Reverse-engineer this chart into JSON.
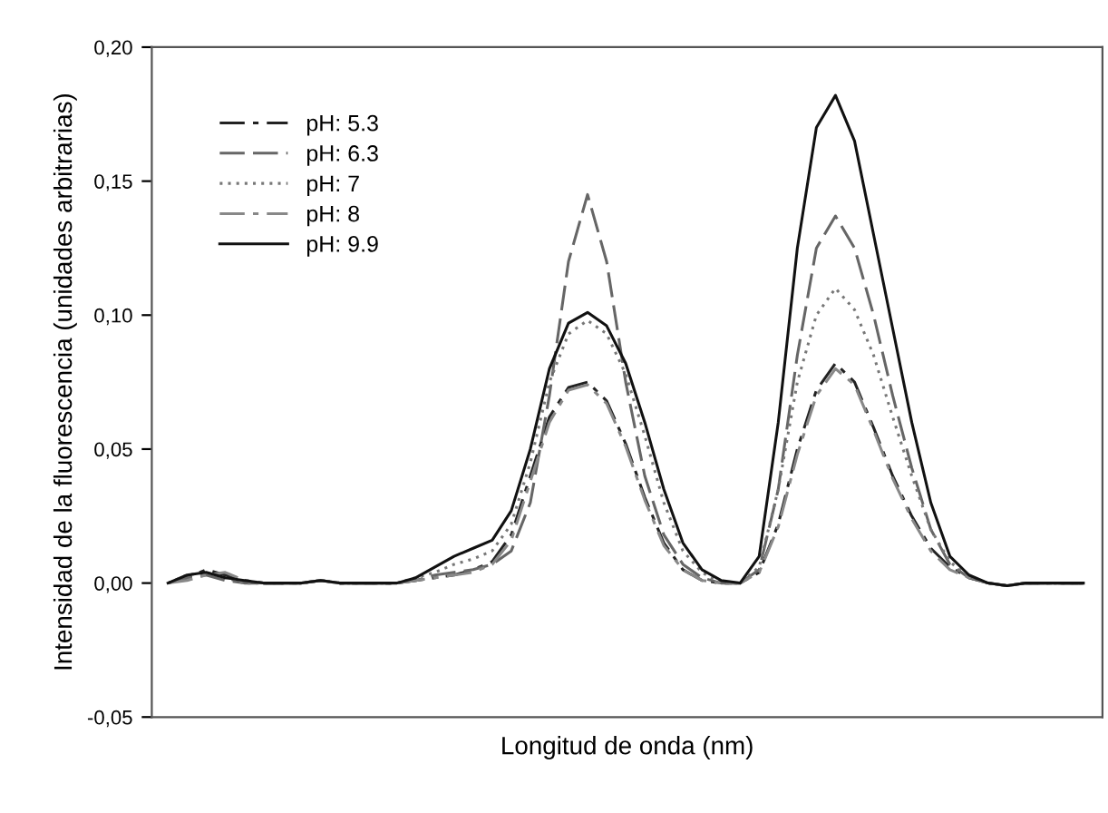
{
  "chart_data": {
    "type": "line",
    "xlabel": "Longitud de onda (nm)",
    "ylabel": "Intensidad de la fluorescencia (unidades arbitrarias)",
    "categories": [
      null,
      null,
      null,
      null,
      null,
      null,
      null,
      null,
      null,
      null,
      null,
      null,
      null,
      null,
      null,
      null,
      null,
      null,
      null,
      null,
      null,
      null,
      null,
      null,
      null,
      null,
      null,
      null,
      null,
      null,
      null,
      null,
      null,
      null,
      null,
      null,
      null,
      null,
      null,
      null,
      null,
      null,
      null,
      null,
      null,
      null,
      null,
      null,
      null
    ],
    "ylim": [
      -0.05,
      0.2
    ],
    "yticks": [
      {
        "value": -0.05,
        "label": "-0,05"
      },
      {
        "value": 0,
        "label": "0,00"
      },
      {
        "value": 0.05,
        "label": "0,05"
      },
      {
        "value": 0.1,
        "label": "0,10"
      },
      {
        "value": 0.15,
        "label": "0,15"
      },
      {
        "value": 0.2,
        "label": "0,20"
      }
    ],
    "grid": false,
    "legend": "top left",
    "marker": "none",
    "series": [
      {
        "name": "pH: 5.3",
        "color": "#222222",
        "line_style": "dashdot",
        "values": [
          0.0,
          0.002,
          0.005,
          0.003,
          0.001,
          0.0,
          0.0,
          0.0,
          0.001,
          0.0,
          0.0,
          0.0,
          0.0,
          0.001,
          0.002,
          0.003,
          0.005,
          0.008,
          0.018,
          0.04,
          0.062,
          0.073,
          0.075,
          0.068,
          0.052,
          0.032,
          0.015,
          0.005,
          0.001,
          0.0,
          0.0,
          0.004,
          0.022,
          0.05,
          0.072,
          0.082,
          0.075,
          0.058,
          0.04,
          0.025,
          0.013,
          0.006,
          0.002,
          0.0,
          -0.001,
          0.0,
          0.0,
          0.0,
          0.0
        ]
      },
      {
        "name": "pH: 6.3",
        "color": "#666666",
        "line_style": "dashed",
        "values": [
          0.0,
          0.002,
          0.003,
          0.001,
          0.0,
          0.0,
          0.0,
          0.0,
          0.001,
          0.0,
          0.0,
          0.0,
          0.0,
          0.001,
          0.003,
          0.004,
          0.005,
          0.007,
          0.012,
          0.03,
          0.07,
          0.12,
          0.145,
          0.12,
          0.075,
          0.04,
          0.018,
          0.007,
          0.002,
          0.0,
          0.0,
          0.005,
          0.035,
          0.085,
          0.125,
          0.137,
          0.125,
          0.1,
          0.07,
          0.043,
          0.02,
          0.007,
          0.002,
          0.0,
          -0.001,
          0.0,
          0.0,
          0.0,
          0.0
        ]
      },
      {
        "name": "pH: 7",
        "color": "#777777",
        "line_style": "dotted",
        "values": [
          0.0,
          0.003,
          0.004,
          0.002,
          0.0,
          0.0,
          0.0,
          0.0,
          0.001,
          0.0,
          0.0,
          0.0,
          0.0,
          0.002,
          0.004,
          0.007,
          0.009,
          0.012,
          0.022,
          0.045,
          0.075,
          0.093,
          0.098,
          0.093,
          0.078,
          0.055,
          0.03,
          0.012,
          0.004,
          0.0,
          0.0,
          0.006,
          0.035,
          0.075,
          0.1,
          0.11,
          0.102,
          0.085,
          0.062,
          0.04,
          0.02,
          0.008,
          0.002,
          0.0,
          -0.001,
          0.0,
          0.0,
          0.0,
          0.0
        ]
      },
      {
        "name": "pH: 8",
        "color": "#888888",
        "line_style": "dashdot",
        "values": [
          0.0,
          0.001,
          0.003,
          0.004,
          0.001,
          0.0,
          0.0,
          0.0,
          0.001,
          0.0,
          0.0,
          0.0,
          0.0,
          0.001,
          0.002,
          0.003,
          0.004,
          0.007,
          0.016,
          0.038,
          0.06,
          0.072,
          0.074,
          0.067,
          0.051,
          0.031,
          0.014,
          0.005,
          0.001,
          0.0,
          0.0,
          0.004,
          0.021,
          0.048,
          0.07,
          0.08,
          0.074,
          0.057,
          0.039,
          0.024,
          0.012,
          0.005,
          0.002,
          0.0,
          -0.001,
          0.0,
          0.0,
          0.0,
          0.0
        ]
      },
      {
        "name": "pH: 9.9",
        "color": "#111111",
        "line_style": "solid",
        "values": [
          0.0,
          0.003,
          0.004,
          0.002,
          0.001,
          0.0,
          0.0,
          0.0,
          0.001,
          0.0,
          0.0,
          0.0,
          0.0,
          0.002,
          0.006,
          0.01,
          0.013,
          0.016,
          0.027,
          0.05,
          0.08,
          0.097,
          0.101,
          0.096,
          0.082,
          0.06,
          0.035,
          0.015,
          0.005,
          0.001,
          0.0,
          0.01,
          0.06,
          0.125,
          0.17,
          0.182,
          0.165,
          0.13,
          0.095,
          0.06,
          0.03,
          0.01,
          0.003,
          0.0,
          -0.001,
          0.0,
          0.0,
          0.0,
          0.0
        ]
      }
    ]
  }
}
